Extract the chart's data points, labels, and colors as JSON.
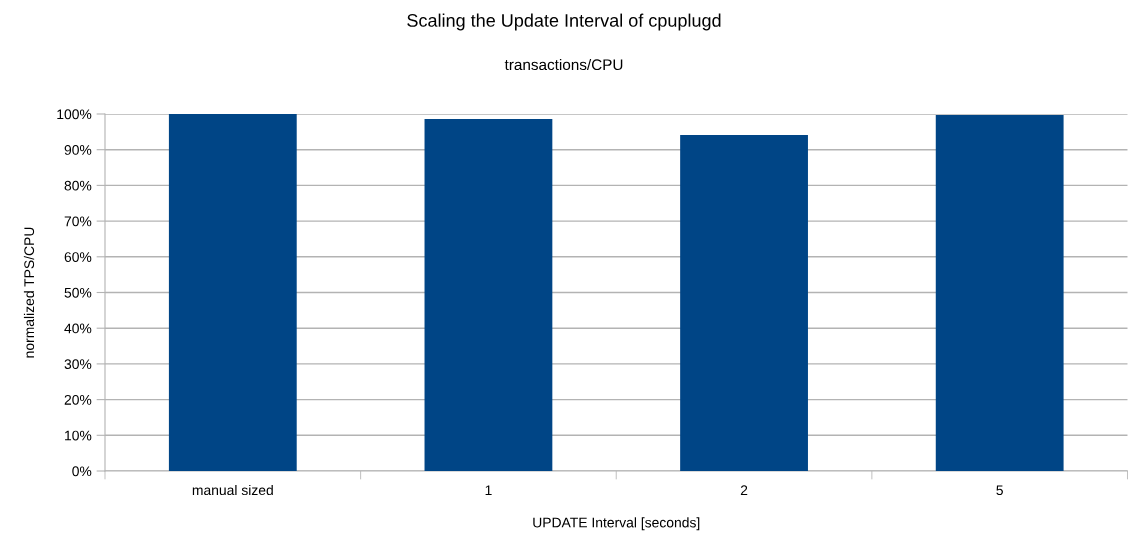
{
  "chart_data": {
    "type": "bar",
    "title": "Scaling the Update Interval of cpuplugd",
    "subtitle": "transactions/CPU",
    "xlabel": "UPDATE Interval [seconds]",
    "ylabel": "normalized TPS/CPU",
    "categories": [
      "manual sized",
      "1",
      "2",
      "5"
    ],
    "values": [
      100,
      98.6,
      94.1,
      99.7
    ],
    "color": "#004586",
    "ylim": [
      0,
      100
    ],
    "yticks": [
      {
        "value": 0,
        "label": "0%"
      },
      {
        "value": 10,
        "label": "10%"
      },
      {
        "value": 20,
        "label": "20%"
      },
      {
        "value": 30,
        "label": "30%"
      },
      {
        "value": 40,
        "label": "40%"
      },
      {
        "value": 50,
        "label": "50%"
      },
      {
        "value": 60,
        "label": "60%"
      },
      {
        "value": 70,
        "label": "70%"
      },
      {
        "value": 80,
        "label": "80%"
      },
      {
        "value": 90,
        "label": "90%"
      },
      {
        "value": 100,
        "label": "100%"
      }
    ],
    "grid": "y",
    "legend": false
  }
}
